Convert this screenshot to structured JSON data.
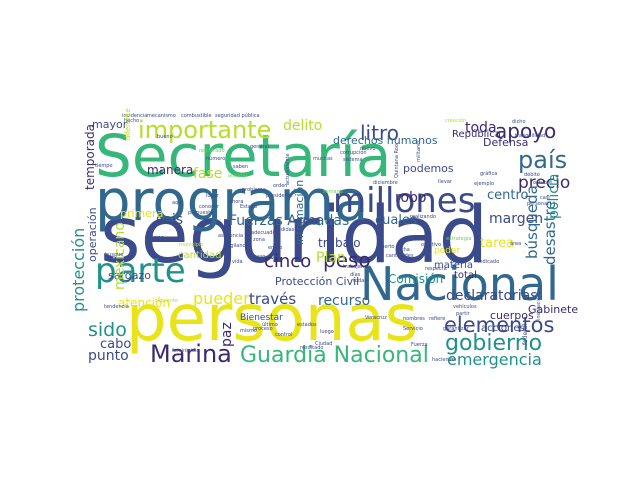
{
  "palette": {
    "background": "#ffffff",
    "dark_purple": "#440154",
    "indigo": "#3b528b",
    "teal_blue": "#31688e",
    "teal": "#21918c",
    "green": "#35b779",
    "light_green": "#6ece58",
    "yellow_green": "#b5de2b",
    "yellow": "#e8e419"
  },
  "words": [
    {
      "text": "seguridad",
      "weight": 1.0,
      "color": "#3b4a8a",
      "vertical": false
    },
    {
      "text": "personas",
      "weight": 0.9,
      "color": "#e8e419",
      "vertical": false
    },
    {
      "text": "Secretaría",
      "weight": 0.85,
      "color": "#35b779",
      "vertical": false
    },
    {
      "text": "programa",
      "weight": 0.8,
      "color": "#31688e",
      "vertical": false
    },
    {
      "text": "Nacional",
      "weight": 0.7,
      "color": "#31688e",
      "vertical": false
    },
    {
      "text": "millones",
      "weight": 0.55,
      "color": "#3b4a8a",
      "vertical": false
    },
    {
      "text": "parte",
      "weight": 0.55,
      "color": "#21918c",
      "vertical": false
    },
    {
      "text": "Marina",
      "weight": 0.4,
      "color": "#3b2a6e",
      "vertical": false
    },
    {
      "text": "Guardia Nacional",
      "weight": 0.38,
      "color": "#35b779",
      "vertical": false
    },
    {
      "text": "importante",
      "weight": 0.38,
      "color": "#b5de2b",
      "vertical": false
    },
    {
      "text": "país",
      "weight": 0.38,
      "color": "#31688e",
      "vertical": false
    },
    {
      "text": "gobierno",
      "weight": 0.35,
      "color": "#21918c",
      "vertical": false
    },
    {
      "text": "elementos",
      "weight": 0.33,
      "color": "#3b4a8a",
      "vertical": false
    },
    {
      "text": "apoyo",
      "weight": 0.3,
      "color": "#3b2a6e",
      "vertical": false
    },
    {
      "text": "litro",
      "weight": 0.3,
      "color": "#3b4a8a",
      "vertical": false
    },
    {
      "text": "peso",
      "weight": 0.3,
      "color": "#3b2a6e",
      "vertical": false
    },
    {
      "text": "sido",
      "weight": 0.28,
      "color": "#21918c",
      "vertical": false
    },
    {
      "text": "precio",
      "weight": 0.27,
      "color": "#3b2a6e",
      "vertical": false
    },
    {
      "text": "emergencia",
      "weight": 0.25,
      "color": "#21918c",
      "vertical": false
    },
    {
      "text": "Fuerzas Armadas",
      "weight": 0.24,
      "color": "#31688e",
      "vertical": false
    },
    {
      "text": "cinco",
      "weight": 0.24,
      "color": "#3b2a6e",
      "vertical": false
    },
    {
      "text": "pueden",
      "weight": 0.22,
      "color": "#e8e419",
      "vertical": false
    },
    {
      "text": "delito",
      "weight": 0.22,
      "color": "#b5de2b",
      "vertical": false
    },
    {
      "text": "toda",
      "weight": 0.22,
      "color": "#3b2a6e",
      "vertical": false
    },
    {
      "text": "punto",
      "weight": 0.2,
      "color": "#3b4a8a",
      "vertical": false
    },
    {
      "text": "centro",
      "weight": 0.2,
      "color": "#31688e",
      "vertical": false
    },
    {
      "text": "margen",
      "weight": 0.2,
      "color": "#3b4a8a",
      "vertical": false
    },
    {
      "text": "tarea",
      "weight": 0.2,
      "color": "#e8e419",
      "vertical": false
    },
    {
      "text": "robo",
      "weight": 0.2,
      "color": "#3b2a6e",
      "vertical": false
    },
    {
      "text": "seis",
      "weight": 0.2,
      "color": "#3b4a8a",
      "vertical": false
    },
    {
      "text": "cuales",
      "weight": 0.19,
      "color": "#31688e",
      "vertical": false
    },
    {
      "text": "través",
      "weight": 0.19,
      "color": "#3b4a8a",
      "vertical": false
    },
    {
      "text": "recurso",
      "weight": 0.19,
      "color": "#31688e",
      "vertical": false
    },
    {
      "text": "declaratorias",
      "weight": 0.19,
      "color": "#3b4a8a",
      "vertical": false
    },
    {
      "text": "Plan",
      "weight": 0.18,
      "color": "#b5de2b",
      "vertical": false
    },
    {
      "text": "trabajo",
      "weight": 0.17,
      "color": "#3b4a8a",
      "vertical": false
    },
    {
      "text": "cabo",
      "weight": 0.17,
      "color": "#3b4a8a",
      "vertical": false
    },
    {
      "text": "Comisión",
      "weight": 0.16,
      "color": "#21918c",
      "vertical": false
    },
    {
      "text": "Protección Civil",
      "weight": 0.16,
      "color": "#3b4a8a",
      "vertical": false
    },
    {
      "text": "derechos humanos",
      "weight": 0.15,
      "color": "#31688e",
      "vertical": false
    },
    {
      "text": "mayor",
      "weight": 0.15,
      "color": "#3b4a8a",
      "vertical": false
    },
    {
      "text": "atención",
      "weight": 0.15,
      "color": "#e8e419",
      "vertical": false
    },
    {
      "text": "fase",
      "weight": 0.15,
      "color": "#b5de2b",
      "vertical": false
    },
    {
      "text": "manera",
      "weight": 0.14,
      "color": "#3b2a6e",
      "vertical": false
    },
    {
      "text": "sargazo",
      "weight": 0.13,
      "color": "#3b4a8a",
      "vertical": false
    },
    {
      "text": "podemos",
      "weight": 0.13,
      "color": "#3b4a8a",
      "vertical": false
    },
    {
      "text": "Defensa",
      "weight": 0.12,
      "color": "#3b2a6e",
      "vertical": false
    },
    {
      "text": "cuerpos",
      "weight": 0.12,
      "color": "#3b2a6e",
      "vertical": false
    },
    {
      "text": "acciones",
      "weight": 0.11,
      "color": "#3b4a8a",
      "vertical": false
    },
    {
      "text": "Gabinete",
      "weight": 0.12,
      "color": "#3b2a6e",
      "vertical": false
    },
    {
      "text": "total",
      "weight": 0.12,
      "color": "#3b2a6e",
      "vertical": false
    },
    {
      "text": "República",
      "weight": 0.12,
      "color": "#3b2a6e",
      "vertical": false
    },
    {
      "text": "cantidad",
      "weight": 0.11,
      "color": "#b5de2b",
      "vertical": false
    },
    {
      "text": "materia",
      "weight": 0.11,
      "color": "#3b4a8a",
      "vertical": false
    },
    {
      "text": "primera",
      "weight": 0.11,
      "color": "#e8e419",
      "vertical": false
    },
    {
      "text": "poder",
      "weight": 0.11,
      "color": "#e8e419",
      "vertical": false
    },
    {
      "text": "Bienestar",
      "weight": 0.09,
      "color": "#3b4a8a",
      "vertical": false
    },
    {
      "text": "paz",
      "weight": 0.15,
      "color": "#3b2a6e",
      "vertical": true
    },
    {
      "text": "protección",
      "weight": 0.22,
      "color": "#21918c",
      "vertical": true
    },
    {
      "text": "búsqueda",
      "weight": 0.2,
      "color": "#31688e",
      "vertical": true
    },
    {
      "text": "desastre",
      "weight": 0.2,
      "color": "#31688e",
      "vertical": true
    },
    {
      "text": "policía",
      "weight": 0.19,
      "color": "#21918c",
      "vertical": true
    },
    {
      "text": "mexicano",
      "weight": 0.16,
      "color": "#b5de2b",
      "vertical": true
    },
    {
      "text": "temporada",
      "weight": 0.14,
      "color": "#3b2a6e",
      "vertical": true
    },
    {
      "text": "operación",
      "weight": 0.14,
      "color": "#3b4a8a",
      "vertical": true
    },
    {
      "text": "información",
      "weight": 0.13,
      "color": "#31688e",
      "vertical": true
    },
    {
      "text": "incidencia",
      "weight": 0.06,
      "color": "#3b4a8a",
      "vertical": false
    },
    {
      "text": "mecanismo",
      "weight": 0.06,
      "color": "#3b4a8a",
      "vertical": false
    },
    {
      "text": "combustible",
      "weight": 0.06,
      "color": "#3b4a8a",
      "vertical": false
    },
    {
      "text": "seguridad pública",
      "weight": 0.06,
      "color": "#3b4a8a",
      "vertical": false
    },
    {
      "text": "corrupción",
      "weight": 0.06,
      "color": "#3b4a8a",
      "vertical": false
    },
    {
      "text": "sistema",
      "weight": 0.06,
      "color": "#3b4a8a",
      "vertical": false
    },
    {
      "text": "registrado",
      "weight": 0.06,
      "color": "#6ece58",
      "vertical": false
    },
    {
      "text": "número",
      "weight": 0.06,
      "color": "#3b4a8a",
      "vertical": false
    },
    {
      "text": "atender",
      "weight": 0.06,
      "color": "#6ece58",
      "vertical": false
    },
    {
      "text": "diferente",
      "weight": 0.07,
      "color": "#b5de2b",
      "vertical": true
    },
    {
      "text": "problema",
      "weight": 0.06,
      "color": "#3b4a8a",
      "vertical": false
    },
    {
      "text": "turismo",
      "weight": 0.06,
      "color": "#3b4a8a",
      "vertical": false
    },
    {
      "text": "tendencia",
      "weight": 0.06,
      "color": "#3b4a8a",
      "vertical": false
    },
    {
      "text": "estrategia",
      "weight": 0.06,
      "color": "#6ece58",
      "vertical": false
    },
    {
      "text": "área",
      "weight": 0.06,
      "color": "#3b4a8a",
      "vertical": false
    },
    {
      "text": "Servicio",
      "weight": 0.06,
      "color": "#3b4a8a",
      "vertical": false
    },
    {
      "text": "Veracruz",
      "weight": 0.06,
      "color": "#3b4a8a",
      "vertical": false
    },
    {
      "text": "nombres",
      "weight": 0.06,
      "color": "#3b4a8a",
      "vertical": false
    },
    {
      "text": "garantizar",
      "weight": 0.06,
      "color": "#3b4a8a",
      "vertical": false
    },
    {
      "text": "haciendo",
      "weight": 0.06,
      "color": "#3b4a8a",
      "vertical": false
    },
    {
      "text": "feminicidio",
      "weight": 0.06,
      "color": "#3b4a8a",
      "vertical": false
    },
    {
      "text": "Ciudad",
      "weight": 0.06,
      "color": "#3b4a8a",
      "vertical": false
    },
    {
      "text": "siguiente",
      "weight": 0.06,
      "color": "#b5de2b",
      "vertical": false
    },
    {
      "text": "municipio",
      "weight": 0.06,
      "color": "#b5de2b",
      "vertical": false
    },
    {
      "text": "resultado",
      "weight": 0.06,
      "color": "#3b4a8a",
      "vertical": false
    },
    {
      "text": "lugar",
      "weight": 0.06,
      "color": "#3b4a8a",
      "vertical": false
    },
    {
      "text": "tiempo",
      "weight": 0.06,
      "color": "#3b4a8a",
      "vertical": false
    },
    {
      "text": "orden",
      "weight": 0.06,
      "color": "#3b4a8a",
      "vertical": false
    },
    {
      "text": "vida",
      "weight": 0.06,
      "color": "#3b4a8a",
      "vertical": false
    },
    {
      "text": "caso",
      "weight": 0.06,
      "color": "#3b4a8a",
      "vertical": false
    },
    {
      "text": "mismo",
      "weight": 0.06,
      "color": "#3b4a8a",
      "vertical": false
    },
    {
      "text": "creación",
      "weight": 0.06,
      "color": "#b5de2b",
      "vertical": false
    },
    {
      "text": "tranquilidad",
      "weight": 0.06,
      "color": "#3b4a8a",
      "vertical": false
    },
    {
      "text": "semana",
      "weight": 0.06,
      "color": "#6ece58",
      "vertical": false
    },
    {
      "text": "diciembre",
      "weight": 0.06,
      "color": "#3b4a8a",
      "vertical": false
    },
    {
      "text": "llevar",
      "weight": 0.06,
      "color": "#3b4a8a",
      "vertical": false
    },
    {
      "text": "ejemplo",
      "weight": 0.06,
      "color": "#3b4a8a",
      "vertical": false
    },
    {
      "text": "trabajando",
      "weight": 0.06,
      "color": "#3b4a8a",
      "vertical": false
    },
    {
      "text": "respecta",
      "weight": 0.06,
      "color": "#3b4a8a",
      "vertical": false
    },
    {
      "text": "partir",
      "weight": 0.06,
      "color": "#3b4a8a",
      "vertical": false
    },
    {
      "text": "refiere",
      "weight": 0.06,
      "color": "#3b4a8a",
      "vertical": false
    },
    {
      "text": "federal",
      "weight": 0.06,
      "color": "#3b4a8a",
      "vertical": true
    },
    {
      "text": "vehículos",
      "weight": 0.06,
      "color": "#3b4a8a",
      "vertical": false
    },
    {
      "text": "Quintana Roo",
      "weight": 0.06,
      "color": "#3b4a8a",
      "vertical": true
    },
    {
      "text": "militares",
      "weight": 0.06,
      "color": "#3b4a8a",
      "vertical": true
    },
    {
      "text": "instituciones",
      "weight": 0.06,
      "color": "#3b4a8a",
      "vertical": true
    },
    {
      "text": "actualmente",
      "weight": 0.06,
      "color": "#3b4a8a",
      "vertical": true
    },
    {
      "text": "busque",
      "weight": 0.06,
      "color": "#3b4a8a",
      "vertical": false
    },
    {
      "text": "muchas",
      "weight": 0.06,
      "color": "#3b4a8a",
      "vertical": false
    },
    {
      "text": "nuevo",
      "weight": 0.06,
      "color": "#3b4a8a",
      "vertical": false
    },
    {
      "text": "fecha",
      "weight": 0.06,
      "color": "#3b4a8a",
      "vertical": false
    },
    {
      "text": "puerto",
      "weight": 0.06,
      "color": "#3b4a8a",
      "vertical": false
    },
    {
      "text": "último",
      "weight": 0.06,
      "color": "#3b4a8a",
      "vertical": false
    },
    {
      "text": "Fuerza",
      "weight": 0.06,
      "color": "#3b4a8a",
      "vertical": false
    },
    {
      "text": "gráfica",
      "weight": 0.06,
      "color": "#3b4a8a",
      "vertical": false
    },
    {
      "text": "débito",
      "weight": 0.06,
      "color": "#3b4a8a",
      "vertical": false
    },
    {
      "text": "octubre",
      "weight": 0.06,
      "color": "#3b4a8a",
      "vertical": false
    },
    {
      "text": "casi",
      "weight": 0.06,
      "color": "#3b4a8a",
      "vertical": false
    },
    {
      "text": "personal",
      "weight": 0.06,
      "color": "#3b4a8a",
      "vertical": false
    },
    {
      "text": "dicho",
      "weight": 0.06,
      "color": "#3b4a8a",
      "vertical": false
    },
    {
      "text": "hecho",
      "weight": 0.06,
      "color": "#3b4a8a",
      "vertical": false
    },
    {
      "text": "bueno",
      "weight": 0.06,
      "color": "#3b4a8a",
      "vertical": false
    },
    {
      "text": "general",
      "weight": 0.06,
      "color": "#3b4a8a",
      "vertical": false
    },
    {
      "text": "Estado",
      "weight": 0.06,
      "color": "#3b4a8a",
      "vertical": false
    },
    {
      "text": "conocer",
      "weight": 0.06,
      "color": "#3b4a8a",
      "vertical": false
    },
    {
      "text": "aquí",
      "weight": 0.06,
      "color": "#3b4a8a",
      "vertical": false
    },
    {
      "text": "propuesta",
      "weight": 0.06,
      "color": "#3b4a8a",
      "vertical": false
    },
    {
      "text": "proceso",
      "weight": 0.06,
      "color": "#3b4a8a",
      "vertical": false
    },
    {
      "text": "control",
      "weight": 0.06,
      "color": "#3b4a8a",
      "vertical": false
    },
    {
      "text": "ahora",
      "weight": 0.06,
      "color": "#3b4a8a",
      "vertical": false
    },
    {
      "text": "saben",
      "weight": 0.06,
      "color": "#3b4a8a",
      "vertical": false
    },
    {
      "text": "adecuado",
      "weight": 0.06,
      "color": "#3b4a8a",
      "vertical": false
    },
    {
      "text": "indicado",
      "weight": 0.06,
      "color": "#3b4a8a",
      "vertical": false
    },
    {
      "text": "objetivo",
      "weight": 0.06,
      "color": "#3b4a8a",
      "vertical": false
    },
    {
      "text": "cantidades",
      "weight": 0.06,
      "color": "#3b4a8a",
      "vertical": false
    },
    {
      "text": "realizando",
      "weight": 0.06,
      "color": "#3b4a8a",
      "vertical": false
    },
    {
      "text": "presidente",
      "weight": 0.06,
      "color": "#3b4a8a",
      "vertical": false
    },
    {
      "text": "vigilancia",
      "weight": 0.06,
      "color": "#3b4a8a",
      "vertical": false
    },
    {
      "text": "medidas",
      "weight": 0.06,
      "color": "#3b4a8a",
      "vertical": false
    },
    {
      "text": "comunidad",
      "weight": 0.06,
      "color": "#3b4a8a",
      "vertical": false
    },
    {
      "text": "asistencia",
      "weight": 0.06,
      "color": "#3b4a8a",
      "vertical": false
    },
    {
      "text": "zona",
      "weight": 0.06,
      "color": "#3b4a8a",
      "vertical": false
    },
    {
      "text": "enero",
      "weight": 0.06,
      "color": "#3b4a8a",
      "vertical": false
    },
    {
      "text": "días",
      "weight": 0.06,
      "color": "#3b4a8a",
      "vertical": false
    },
    {
      "text": "todas",
      "weight": 0.06,
      "color": "#3b4a8a",
      "vertical": false
    },
    {
      "text": "luego",
      "weight": 0.06,
      "color": "#3b4a8a",
      "vertical": false
    },
    {
      "text": "estados",
      "weight": 0.06,
      "color": "#3b4a8a",
      "vertical": false
    }
  ]
}
